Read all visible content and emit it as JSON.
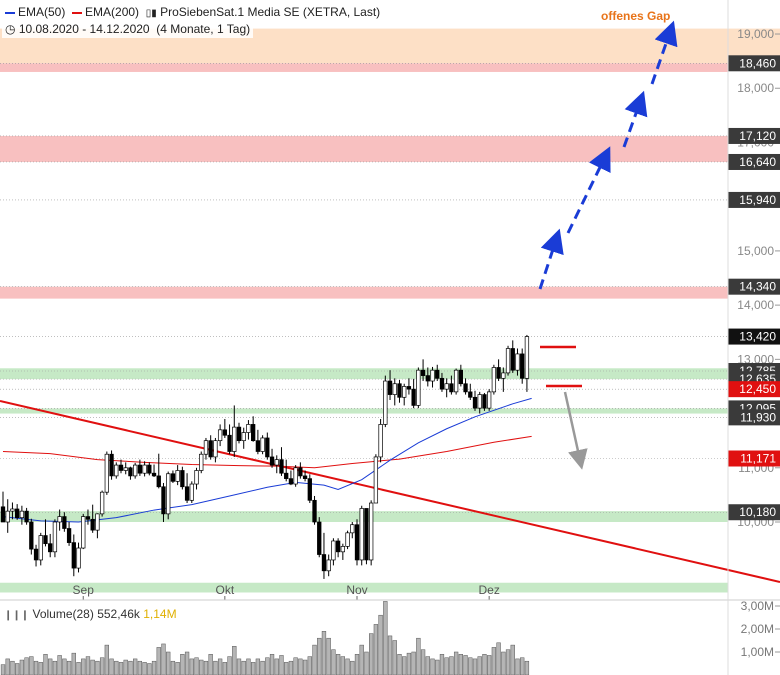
{
  "header": {
    "ema50_label": "EMA(50)",
    "ema200_label": "EMA(200)",
    "instrument": "ProSiebenSat.1 Media SE (XETRA, Last)",
    "date_range": "10.08.2020 - 14.12.2020",
    "period": "(4 Monate, 1 Tag)",
    "colors": {
      "ema50": "#1a3cd6",
      "ema200": "#e01010"
    }
  },
  "annotations": {
    "gap_label": "offenes Gap"
  },
  "volume_panel": {
    "label": "Volume(28)",
    "current": "552,46k",
    "avg": "1,14M",
    "y_ticks": [
      "3,00M",
      "2,00M",
      "1,00M"
    ]
  },
  "chart_data": {
    "type": "candlestick",
    "title": "ProSiebenSat.1 Media SE (XETRA, Last)",
    "x_tick_labels": [
      "Sep",
      "Okt",
      "Nov",
      "Dez"
    ],
    "y_ticks": [
      10000,
      11000,
      12000,
      13000,
      14000,
      15000,
      16000,
      17000,
      18000,
      19000
    ],
    "y_tick_labels": [
      "10,000",
      "11,000",
      "12,000",
      "13,000",
      "14,000",
      "15,000",
      "16,000",
      "17,000",
      "18,000",
      "19,000"
    ],
    "ylim": [
      9000,
      19000
    ],
    "price_levels": [
      {
        "value": 18460,
        "label": "18,460",
        "badge": "#3a3a3a"
      },
      {
        "value": 17120,
        "label": "17,120",
        "badge": "#3a3a3a"
      },
      {
        "value": 16640,
        "label": "16,640",
        "badge": "#3a3a3a"
      },
      {
        "value": 15940,
        "label": "15,940",
        "badge": "#3a3a3a"
      },
      {
        "value": 14340,
        "label": "14,340",
        "badge": "#3a3a3a"
      },
      {
        "value": 13420,
        "label": "13,420",
        "badge": "#111111"
      },
      {
        "value": 12785,
        "label": "12,785",
        "badge": "#3a3a3a"
      },
      {
        "value": 12635,
        "label": "12,635",
        "badge": "#3a3a3a"
      },
      {
        "value": 12450,
        "label": "12,450",
        "badge": "#e01010"
      },
      {
        "value": 12095,
        "label": "12,095",
        "badge": "#3a3a3a"
      },
      {
        "value": 11930,
        "label": "11,930",
        "badge": "#3a3a3a"
      },
      {
        "value": 11171,
        "label": "11,171",
        "badge": "#e01010"
      },
      {
        "value": 10180,
        "label": "10,180",
        "badge": "#3a3a3a"
      }
    ],
    "zones": [
      {
        "from": 18460,
        "to": 19100,
        "color": "#fde0c6",
        "kind": "gap"
      },
      {
        "from": 18300,
        "to": 18460,
        "color": "#f8c0c0",
        "kind": "resistance"
      },
      {
        "from": 16640,
        "to": 17120,
        "color": "#f8c0c0",
        "kind": "resistance"
      },
      {
        "from": 14120,
        "to": 14340,
        "color": "#f8c0c0",
        "kind": "resistance"
      },
      {
        "from": 12635,
        "to": 12835,
        "color": "#c6e9c6",
        "kind": "support"
      },
      {
        "from": 12000,
        "to": 12095,
        "color": "#c6e9c6",
        "kind": "support"
      },
      {
        "from": 10000,
        "to": 10200,
        "color": "#c6e9c6",
        "kind": "support"
      },
      {
        "from": 8700,
        "to": 8880,
        "color": "#c6e9c6",
        "kind": "support"
      }
    ],
    "candles": [
      [
        10280,
        10560,
        10000,
        10000
      ],
      [
        10000,
        10420,
        9800,
        10200
      ],
      [
        10200,
        10360,
        10050,
        10240
      ],
      [
        10240,
        10330,
        10040,
        10080
      ],
      [
        10080,
        10300,
        9950,
        10200
      ],
      [
        10200,
        10260,
        9950,
        10000
      ],
      [
        10000,
        10060,
        9400,
        9500
      ],
      [
        9500,
        9580,
        9180,
        9300
      ],
      [
        9300,
        9800,
        9200,
        9750
      ],
      [
        9750,
        10050,
        9550,
        9600
      ],
      [
        9600,
        9780,
        9350,
        9450
      ],
      [
        9450,
        10050,
        9350,
        10000
      ],
      [
        10000,
        10230,
        9840,
        10100
      ],
      [
        10100,
        10180,
        9820,
        9880
      ],
      [
        9880,
        10000,
        9560,
        9620
      ],
      [
        9620,
        9770,
        9000,
        9150
      ],
      [
        9150,
        9620,
        9070,
        9520
      ],
      [
        9520,
        10150,
        9500,
        10100
      ],
      [
        10100,
        10230,
        9950,
        10050
      ],
      [
        10050,
        10320,
        9800,
        9850
      ],
      [
        9850,
        10160,
        9700,
        10150
      ],
      [
        10150,
        10580,
        10100,
        10550
      ],
      [
        10550,
        11300,
        10500,
        11250
      ],
      [
        11250,
        11320,
        10780,
        10850
      ],
      [
        10850,
        11100,
        10800,
        11050
      ],
      [
        11050,
        11150,
        10900,
        10950
      ],
      [
        10950,
        11100,
        10880,
        11000
      ],
      [
        11000,
        11020,
        10780,
        10850
      ],
      [
        10850,
        11090,
        10800,
        11050
      ],
      [
        11050,
        11150,
        10850,
        10900
      ],
      [
        10900,
        11120,
        10840,
        11050
      ],
      [
        11050,
        11100,
        10860,
        10900
      ],
      [
        10900,
        11060,
        10830,
        10850
      ],
      [
        10850,
        11260,
        10620,
        10650
      ],
      [
        10650,
        10720,
        10000,
        10150
      ],
      [
        10150,
        10930,
        10050,
        10890
      ],
      [
        10890,
        10950,
        10720,
        10750
      ],
      [
        10750,
        11050,
        10680,
        10950
      ],
      [
        10950,
        11020,
        10600,
        10650
      ],
      [
        10650,
        10900,
        10350,
        10400
      ],
      [
        10400,
        10750,
        10350,
        10700
      ],
      [
        10700,
        11000,
        10600,
        10950
      ],
      [
        10950,
        11300,
        10900,
        11250
      ],
      [
        11250,
        11550,
        11150,
        11500
      ],
      [
        11500,
        11600,
        11150,
        11200
      ],
      [
        11200,
        11550,
        11100,
        11500
      ],
      [
        11500,
        11800,
        11400,
        11700
      ],
      [
        11700,
        11900,
        11550,
        11600
      ],
      [
        11600,
        11800,
        11250,
        11300
      ],
      [
        11300,
        12150,
        11200,
        11750
      ],
      [
        11750,
        11830,
        11450,
        11500
      ],
      [
        11500,
        11740,
        11350,
        11650
      ],
      [
        11650,
        11880,
        11520,
        11800
      ],
      [
        11800,
        11950,
        11480,
        11500
      ],
      [
        11500,
        11700,
        11250,
        11300
      ],
      [
        11300,
        11600,
        11250,
        11550
      ],
      [
        11550,
        11650,
        11150,
        11200
      ],
      [
        11200,
        11350,
        11000,
        11050
      ],
      [
        11050,
        11230,
        10900,
        11150
      ],
      [
        11150,
        11380,
        10850,
        10900
      ],
      [
        10900,
        11150,
        10750,
        10800
      ],
      [
        10800,
        10950,
        10680,
        10700
      ],
      [
        10700,
        11050,
        10650,
        11000
      ],
      [
        11000,
        11100,
        10800,
        10850
      ],
      [
        10850,
        10950,
        10750,
        10800
      ],
      [
        10800,
        10880,
        10350,
        10400
      ],
      [
        10400,
        10480,
        9950,
        10000
      ],
      [
        10000,
        10090,
        9350,
        9400
      ],
      [
        9400,
        9800,
        8950,
        9100
      ],
      [
        9100,
        9400,
        9000,
        9300
      ],
      [
        9300,
        9700,
        9200,
        9650
      ],
      [
        9650,
        9700,
        9350,
        9450
      ],
      [
        9450,
        9600,
        9300,
        9550
      ],
      [
        9550,
        9840,
        9500,
        9800
      ],
      [
        9800,
        10000,
        9700,
        9950
      ],
      [
        9950,
        10050,
        9200,
        9300
      ],
      [
        9300,
        10300,
        9200,
        10250
      ],
      [
        10250,
        10150,
        9220,
        9300
      ],
      [
        9300,
        10400,
        9200,
        10350
      ],
      [
        10350,
        11250,
        10350,
        11200
      ],
      [
        11200,
        11900,
        11100,
        11800
      ],
      [
        11800,
        12700,
        11750,
        12600
      ],
      [
        12600,
        12800,
        12250,
        12350
      ],
      [
        12350,
        12650,
        12150,
        12550
      ],
      [
        12550,
        12620,
        12200,
        12300
      ],
      [
        12300,
        12550,
        12150,
        12500
      ],
      [
        12500,
        12650,
        12350,
        12450
      ],
      [
        12450,
        12640,
        12100,
        12150
      ],
      [
        12150,
        12850,
        12100,
        12800
      ],
      [
        12800,
        13000,
        12600,
        12700
      ],
      [
        12700,
        12850,
        12500,
        12600
      ],
      [
        12600,
        12860,
        12480,
        12800
      ],
      [
        12800,
        12900,
        12600,
        12650
      ],
      [
        12650,
        12750,
        12400,
        12450
      ],
      [
        12450,
        12650,
        12300,
        12550
      ],
      [
        12550,
        12700,
        12350,
        12400
      ],
      [
        12400,
        12830,
        12350,
        12800
      ],
      [
        12800,
        12900,
        12500,
        12550
      ],
      [
        12550,
        12650,
        12350,
        12400
      ],
      [
        12400,
        12550,
        12250,
        12300
      ],
      [
        12300,
        12420,
        12050,
        12100
      ],
      [
        12100,
        12400,
        12000,
        12350
      ],
      [
        12350,
        12380,
        12050,
        12100
      ],
      [
        12100,
        12450,
        12050,
        12400
      ],
      [
        12400,
        12900,
        12350,
        12850
      ],
      [
        12850,
        13000,
        12600,
        12650
      ],
      [
        12650,
        12850,
        12400,
        12750
      ],
      [
        12750,
        13250,
        12700,
        13200
      ],
      [
        13200,
        13350,
        12750,
        12800
      ],
      [
        12800,
        13200,
        12700,
        13100
      ],
      [
        13100,
        13200,
        12550,
        12650
      ],
      [
        12650,
        13450,
        12400,
        13420
      ]
    ],
    "ema50": [
      [
        0,
        10100
      ],
      [
        8,
        10020
      ],
      [
        16,
        10000
      ],
      [
        24,
        10080
      ],
      [
        32,
        10220
      ],
      [
        40,
        10320
      ],
      [
        48,
        10480
      ],
      [
        56,
        10640
      ],
      [
        62,
        10730
      ],
      [
        68,
        10680
      ],
      [
        71,
        10600
      ],
      [
        76,
        10780
      ],
      [
        82,
        11140
      ],
      [
        88,
        11460
      ],
      [
        94,
        11720
      ],
      [
        100,
        11940
      ],
      [
        108,
        12180
      ],
      [
        112,
        12280
      ]
    ],
    "ema200": [
      [
        0,
        11300
      ],
      [
        10,
        11260
      ],
      [
        20,
        11150
      ],
      [
        30,
        11100
      ],
      [
        40,
        11060
      ],
      [
        50,
        11040
      ],
      [
        58,
        11030
      ],
      [
        66,
        11000
      ],
      [
        74,
        11080
      ],
      [
        84,
        11160
      ],
      [
        94,
        11300
      ],
      [
        104,
        11470
      ],
      [
        112,
        11580
      ]
    ],
    "volumes": [
      0.45,
      0.7,
      0.6,
      0.5,
      0.65,
      0.75,
      0.8,
      0.6,
      0.55,
      0.9,
      0.7,
      0.6,
      0.85,
      0.7,
      0.6,
      0.95,
      0.55,
      0.7,
      0.8,
      0.65,
      0.6,
      0.75,
      1.3,
      0.7,
      0.6,
      0.55,
      0.65,
      0.6,
      0.7,
      0.6,
      0.55,
      0.5,
      0.6,
      1.2,
      1.35,
      1.0,
      0.6,
      0.55,
      0.9,
      1.0,
      0.7,
      0.75,
      0.65,
      0.6,
      0.9,
      0.6,
      0.7,
      0.55,
      0.8,
      1.25,
      0.7,
      0.6,
      0.7,
      0.55,
      0.7,
      0.6,
      0.75,
      0.9,
      0.7,
      0.85,
      0.55,
      0.6,
      0.75,
      0.7,
      0.65,
      0.8,
      1.3,
      1.6,
      1.9,
      1.6,
      1.1,
      0.9,
      0.8,
      0.7,
      0.6,
      0.9,
      1.3,
      1.0,
      1.8,
      2.2,
      2.6,
      3.2,
      1.7,
      1.5,
      0.9,
      0.8,
      0.95,
      1.0,
      1.6,
      1.1,
      0.8,
      0.7,
      0.65,
      0.9,
      0.75,
      0.8,
      1.0,
      0.9,
      0.85,
      0.75,
      0.7,
      0.8,
      0.9,
      0.85,
      1.2,
      1.4,
      1.0,
      1.1,
      1.3,
      0.7,
      0.75,
      0.6
    ],
    "projection_up": [
      [
        12450,
        13420
      ],
      [
        14340,
        15940
      ],
      [
        16640,
        17120
      ],
      [
        18460,
        18460
      ]
    ],
    "projection_down_from": 11930,
    "projection_down_to": 11171
  }
}
